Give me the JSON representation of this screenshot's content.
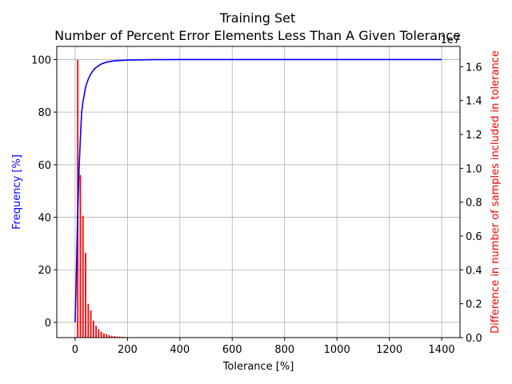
{
  "chart_data": {
    "type": "line",
    "title": "Training Set",
    "subtitle": "Number of Percent Error Elements Less Than A Given Tolerance",
    "xlabel": "Tolerance [%]",
    "ylabel": "Frequency [%]",
    "y2label": "Difference in number of samples included in tolerance",
    "y2_offset_label": "1e7",
    "xlim": [
      -70,
      1470
    ],
    "ylim": [
      -5.8,
      105
    ],
    "y2lim": [
      0,
      1.72
    ],
    "x_ticks": [
      0,
      200,
      400,
      600,
      800,
      1000,
      1200,
      1400
    ],
    "y_ticks": [
      0,
      20,
      40,
      60,
      80,
      100
    ],
    "y2_ticks": [
      0.0,
      0.2,
      0.4,
      0.6,
      0.8,
      1.0,
      1.2,
      1.4,
      1.6
    ],
    "y2_tick_labels": [
      "0.0",
      "0.2",
      "0.4",
      "0.6",
      "0.8",
      "1.0",
      "1.2",
      "1.4",
      "1.6"
    ],
    "grid": true,
    "colors": {
      "line": "#0000ff",
      "bars": "#ff0000",
      "left_label": "#0000ff",
      "right_label": "#ff0000"
    },
    "series": [
      {
        "type": "line",
        "axis": "left",
        "x": [
          0,
          5,
          10,
          15,
          20,
          25,
          30,
          40,
          50,
          60,
          70,
          80,
          100,
          120,
          150,
          200,
          300,
          400,
          600,
          800,
          1000,
          1200,
          1400
        ],
        "y": [
          0,
          20,
          42,
          58,
          70,
          80,
          84,
          89.5,
          92.5,
          94.5,
          96,
          97,
          98.3,
          99,
          99.5,
          99.8,
          99.95,
          100,
          100,
          100,
          100,
          100,
          100
        ]
      },
      {
        "type": "bar",
        "axis": "right",
        "x": [
          10,
          20,
          30,
          40,
          50,
          60,
          70,
          80,
          90,
          100,
          110,
          120,
          130,
          140,
          150,
          160,
          170,
          180,
          190,
          200
        ],
        "y": [
          1.64,
          0.96,
          0.72,
          0.5,
          0.2,
          0.16,
          0.1,
          0.07,
          0.05,
          0.035,
          0.025,
          0.02,
          0.014,
          0.011,
          0.009,
          0.007,
          0.006,
          0.005,
          0.004,
          0.003
        ]
      }
    ]
  }
}
